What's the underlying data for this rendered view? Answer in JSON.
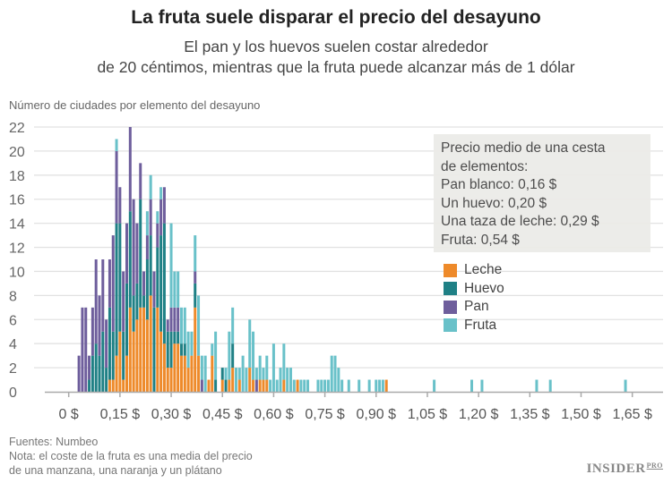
{
  "title": "La fruta suele disparar el precio del desayuno",
  "subtitle_lines": [
    "El pan y los huevos suelen costar alrededor",
    "de 20 céntimos, mientras que la fruta puede alcanzar más de 1 dólar"
  ],
  "footer": {
    "source": "Fuentes: Numbeo",
    "note_lines": [
      "Nota: el coste de la fruta es una media del precio",
      "de una manzana, una naranja y un plátano"
    ],
    "logo": "INSIDER PRO"
  },
  "note_box": {
    "lines": [
      "Precio medio de una cesta",
      "de elementos:",
      "Pan blanco: 0,16 $",
      "Un huevo: 0,20 $",
      "Una taza de leche: 0,29 $",
      "Fruta: 0,54 $"
    ]
  },
  "chart_data": {
    "type": "bar",
    "stacked": true,
    "ylabel": "Número de ciudades por elemento del desayuno",
    "ylim": [
      0,
      22
    ],
    "yticks": [
      "0",
      "2",
      "4",
      "6",
      "8",
      "10",
      "12",
      "14",
      "16",
      "18",
      "20",
      "22"
    ],
    "xticks": [
      0,
      0.15,
      0.3,
      0.45,
      0.6,
      0.75,
      0.9,
      1.05,
      1.2,
      1.35,
      1.5,
      1.65
    ],
    "xtick_labels": [
      "0 $",
      "0,15 $",
      "0,30 $",
      "0,45 $",
      "0,60 $",
      "0,75 $",
      "0,90 $",
      "1,05 $",
      "1,20 $",
      "1,35 $",
      "1,50 $",
      "1,65 $"
    ],
    "xlim": [
      -0.07,
      1.74
    ],
    "grid": true,
    "legend_position": "right",
    "series_order": [
      "Leche",
      "Huevo",
      "Pan",
      "Fruta"
    ],
    "colors": {
      "Leche": "#ee8a2a",
      "Huevo": "#1f8085",
      "Pan": "#6e5e9c",
      "Fruta": "#69c1c9"
    },
    "bins": [
      [
        0.03,
        0,
        0,
        3,
        0
      ],
      [
        0.04,
        0,
        0,
        7,
        0
      ],
      [
        0.05,
        0,
        0,
        7,
        0
      ],
      [
        0.06,
        0,
        1,
        2,
        0
      ],
      [
        0.07,
        0,
        3,
        4,
        0
      ],
      [
        0.08,
        0,
        4,
        7,
        0
      ],
      [
        0.09,
        0,
        3,
        5,
        0
      ],
      [
        0.1,
        0,
        5,
        6,
        0
      ],
      [
        0.11,
        0,
        2,
        4,
        0
      ],
      [
        0.12,
        1,
        6,
        4,
        0
      ],
      [
        0.13,
        1,
        4,
        8,
        0
      ],
      [
        0.14,
        3,
        11,
        6,
        1
      ],
      [
        0.15,
        5,
        9,
        3,
        0
      ],
      [
        0.16,
        1,
        4,
        5,
        0
      ],
      [
        0.17,
        3,
        6,
        5,
        0
      ],
      [
        0.18,
        7,
        8,
        7,
        0
      ],
      [
        0.19,
        5,
        3,
        8,
        0
      ],
      [
        0.2,
        6,
        3,
        5,
        0
      ],
      [
        0.21,
        7,
        9,
        3,
        0
      ],
      [
        0.22,
        7,
        1,
        2,
        0
      ],
      [
        0.23,
        6,
        5,
        2,
        2
      ],
      [
        0.24,
        8,
        5,
        3,
        2
      ],
      [
        0.25,
        0,
        7,
        3,
        0
      ],
      [
        0.26,
        7,
        5,
        2,
        1
      ],
      [
        0.27,
        5,
        8,
        3,
        1
      ],
      [
        0.28,
        4,
        10,
        3,
        0
      ],
      [
        0.29,
        2,
        3,
        1,
        0
      ],
      [
        0.3,
        2,
        3,
        2,
        7
      ],
      [
        0.31,
        4,
        1,
        2,
        3
      ],
      [
        0.32,
        4,
        1,
        2,
        3
      ],
      [
        0.33,
        3,
        1,
        0,
        3
      ],
      [
        0.34,
        3,
        1,
        0,
        3
      ],
      [
        0.35,
        2,
        0,
        0,
        3
      ],
      [
        0.36,
        3,
        0,
        0,
        2
      ],
      [
        0.37,
        7,
        2,
        1,
        3
      ],
      [
        0.38,
        3,
        0,
        0,
        5
      ],
      [
        0.39,
        0,
        0,
        1,
        2
      ],
      [
        0.4,
        0,
        0,
        0,
        3
      ],
      [
        0.41,
        1,
        0,
        0,
        0
      ],
      [
        0.42,
        3,
        0,
        0,
        1
      ],
      [
        0.43,
        0,
        1,
        0,
        4
      ],
      [
        0.45,
        1,
        1,
        0,
        0
      ],
      [
        0.46,
        0,
        1,
        0,
        1
      ],
      [
        0.47,
        1,
        0,
        0,
        4
      ],
      [
        0.48,
        2,
        2,
        0,
        3
      ],
      [
        0.49,
        0,
        0,
        0,
        2
      ],
      [
        0.5,
        1,
        0,
        0,
        1
      ],
      [
        0.51,
        0,
        0,
        0,
        3
      ],
      [
        0.52,
        0,
        0,
        0,
        2
      ],
      [
        0.53,
        2,
        0,
        0,
        4
      ],
      [
        0.54,
        1,
        0,
        0,
        4
      ],
      [
        0.55,
        0,
        0,
        1,
        1
      ],
      [
        0.56,
        1,
        0,
        0,
        2
      ],
      [
        0.57,
        1,
        0,
        0,
        1
      ],
      [
        0.58,
        1,
        0,
        0,
        2
      ],
      [
        0.59,
        0,
        0,
        0,
        1
      ],
      [
        0.6,
        0,
        0,
        0,
        4
      ],
      [
        0.61,
        0,
        0,
        0,
        1
      ],
      [
        0.62,
        0,
        0,
        0,
        2
      ],
      [
        0.63,
        1,
        0,
        0,
        3
      ],
      [
        0.64,
        0,
        0,
        0,
        2
      ],
      [
        0.65,
        0,
        0,
        0,
        2
      ],
      [
        0.66,
        0,
        0,
        0,
        1
      ],
      [
        0.67,
        1,
        0,
        0,
        0
      ],
      [
        0.68,
        0,
        0,
        0,
        1
      ],
      [
        0.69,
        0,
        0,
        0,
        1
      ],
      [
        0.7,
        0,
        0,
        0,
        1
      ],
      [
        0.73,
        0,
        0,
        0,
        1
      ],
      [
        0.74,
        0,
        0,
        0,
        1
      ],
      [
        0.75,
        0,
        0,
        0,
        1
      ],
      [
        0.76,
        0,
        0,
        0,
        1
      ],
      [
        0.77,
        0,
        0,
        0,
        3
      ],
      [
        0.78,
        0,
        0,
        0,
        3
      ],
      [
        0.79,
        0,
        0,
        0,
        2
      ],
      [
        0.8,
        0,
        0,
        0,
        1
      ],
      [
        0.82,
        0,
        0,
        0,
        1
      ],
      [
        0.85,
        0,
        0,
        0,
        1
      ],
      [
        0.88,
        0,
        0,
        0,
        1
      ],
      [
        0.9,
        0,
        0,
        0,
        1
      ],
      [
        0.91,
        0,
        0,
        0,
        1
      ],
      [
        0.92,
        0,
        0,
        0,
        1
      ],
      [
        0.93,
        1,
        0,
        0,
        0
      ],
      [
        1.07,
        0,
        0,
        0,
        1
      ],
      [
        1.18,
        0,
        0,
        0,
        1
      ],
      [
        1.21,
        0,
        0,
        0,
        1
      ],
      [
        1.37,
        0,
        0,
        0,
        1
      ],
      [
        1.41,
        0,
        0,
        0,
        1
      ],
      [
        1.63,
        0,
        0,
        0,
        1
      ]
    ]
  }
}
